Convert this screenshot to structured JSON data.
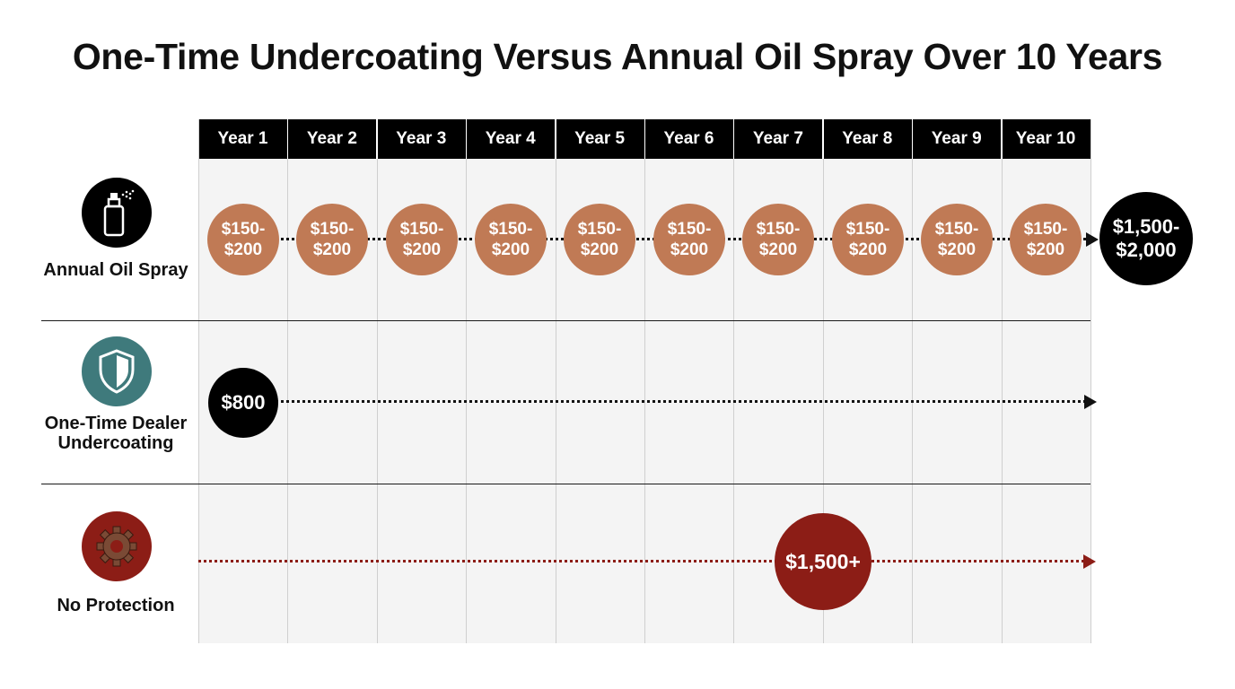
{
  "title": "One-Time Undercoating Versus Annual Oil Spray Over 10 Years",
  "years": [
    "Year 1",
    "Year 2",
    "Year 3",
    "Year 4",
    "Year 5",
    "Year 6",
    "Year 7",
    "Year 8",
    "Year 9",
    "Year 10"
  ],
  "rows": [
    {
      "label": "Annual Oil Spray",
      "icon": "spray-can-icon",
      "yearly_costs": [
        "$150-\n$200",
        "$150-\n$200",
        "$150-\n$200",
        "$150-\n$200",
        "$150-\n$200",
        "$150-\n$200",
        "$150-\n$200",
        "$150-\n$200",
        "$150-\n$200",
        "$150-\n$200"
      ],
      "total": "$1,500-\n$2,000"
    },
    {
      "label": "One-Time Dealer Undercoating",
      "icon": "shield-icon",
      "cost": "$800",
      "cost_year": 1
    },
    {
      "label": "No Protection",
      "icon": "rusty-gear-icon",
      "cost": "$1,500+",
      "cost_year": 8
    }
  ],
  "colors": {
    "annual_bubble": "#c07a55",
    "total_bubble": "#000000",
    "undercoating_bubble": "#000000",
    "no_protection_bubble": "#8c1d16",
    "no_protection_line": "#8c1d16",
    "shield_icon_bg": "#3f7a7c"
  }
}
